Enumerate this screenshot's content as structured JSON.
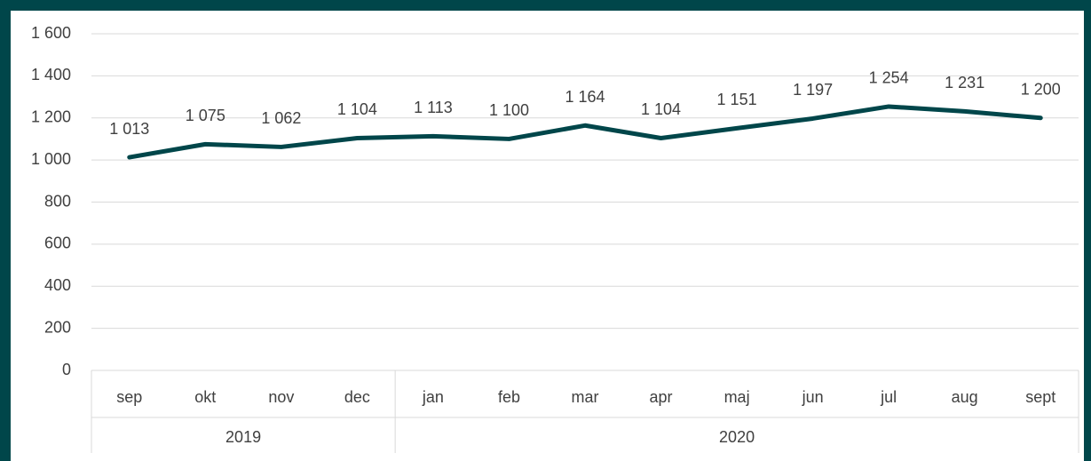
{
  "chart_data": {
    "type": "line",
    "categories": [
      "sep",
      "okt",
      "nov",
      "dec",
      "jan",
      "feb",
      "mar",
      "apr",
      "maj",
      "jun",
      "jul",
      "aug",
      "sept"
    ],
    "groups": [
      {
        "label": "2019",
        "span": 4
      },
      {
        "label": "2020",
        "span": 9
      }
    ],
    "series": [
      {
        "color": "#00464a",
        "values": [
          1013,
          1075,
          1062,
          1104,
          1113,
          1100,
          1164,
          1104,
          1151,
          1197,
          1254,
          1231,
          1200
        ],
        "value_labels": [
          "1 013",
          "1 075",
          "1 062",
          "1 104",
          "1 113",
          "1 100",
          "1 164",
          "1 104",
          "1 151",
          "1 197",
          "1 254",
          "1 231",
          "1 200"
        ]
      }
    ],
    "ylim": [
      0,
      1600
    ],
    "yticks": [
      0,
      200,
      400,
      600,
      800,
      {
        "value": 1000,
        "label": "1 000"
      },
      {
        "value": 1200,
        "label": "1 200"
      },
      {
        "value": 1400,
        "label": "1 400"
      },
      {
        "value": 1600,
        "label": "1 600"
      }
    ],
    "grid": true
  }
}
